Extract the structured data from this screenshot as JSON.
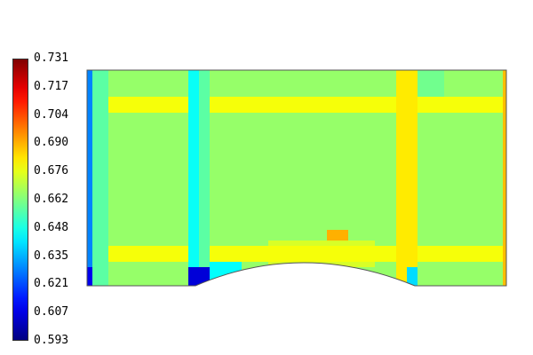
{
  "colorbar": {
    "ticks": [
      "0.731",
      "0.717",
      "0.704",
      "0.690",
      "0.676",
      "0.662",
      "0.648",
      "0.635",
      "0.621",
      "0.607",
      "0.593"
    ],
    "min": 0.593,
    "max": 0.731,
    "colormap": "jet"
  },
  "field": {
    "background_color": "#7fff00",
    "outline_color": "#444444"
  }
}
